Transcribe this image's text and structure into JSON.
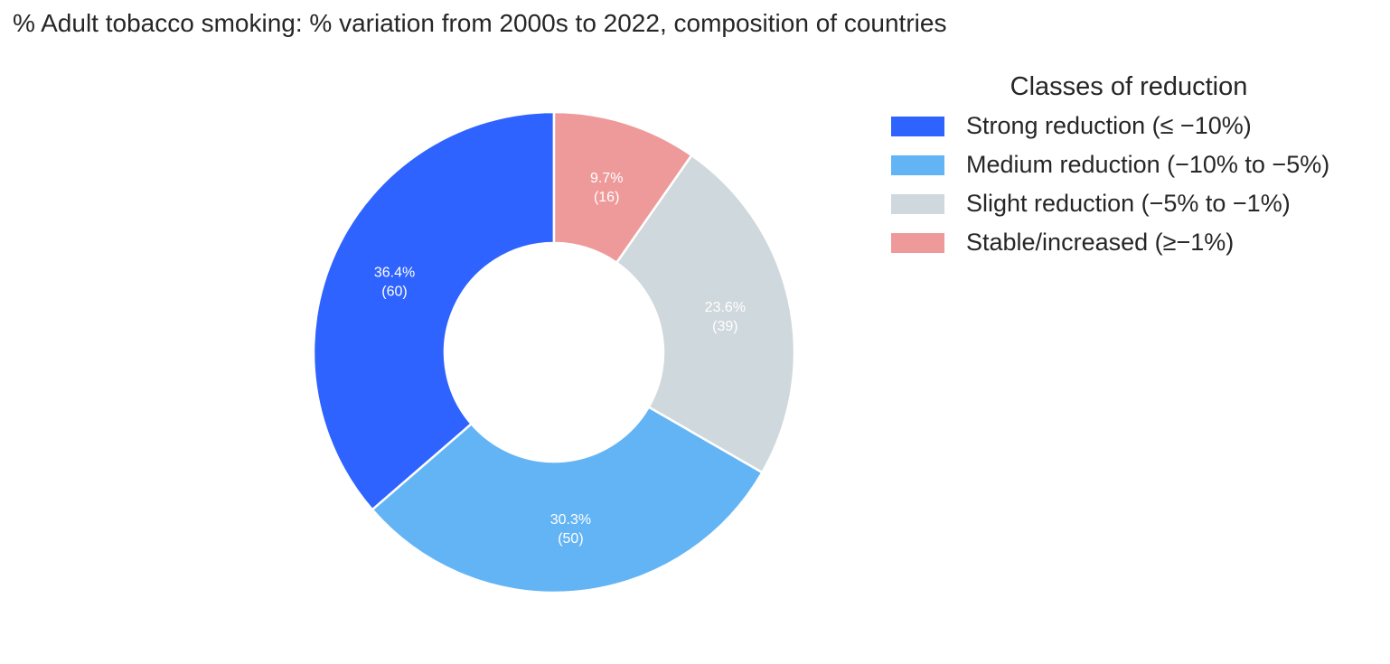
{
  "chart_data": {
    "type": "pie",
    "subtype": "donut",
    "title": "% Adult tobacco smoking: % variation from 2000s to 2022, composition of countries",
    "legend": {
      "title": "Classes of reduction",
      "placement": "right"
    },
    "categories": [
      "Strong reduction (≤ −10%)",
      "Medium reduction (−10% to −5%)",
      "Slight reduction (−5% to −1%)",
      "Stable/increased (≥−1%)"
    ],
    "values": [
      60,
      50,
      39,
      16
    ],
    "percent_labels": [
      "36.4%",
      "30.3%",
      "23.6%",
      "9.7%"
    ],
    "count_labels": [
      "(60)",
      "(50)",
      "(39)",
      "(16)"
    ],
    "colors": [
      "#2e63ff",
      "#63b4f5",
      "#cfd8dc",
      "#ef9a9a"
    ],
    "start_angle_deg": 90,
    "direction": "counterclockwise"
  }
}
